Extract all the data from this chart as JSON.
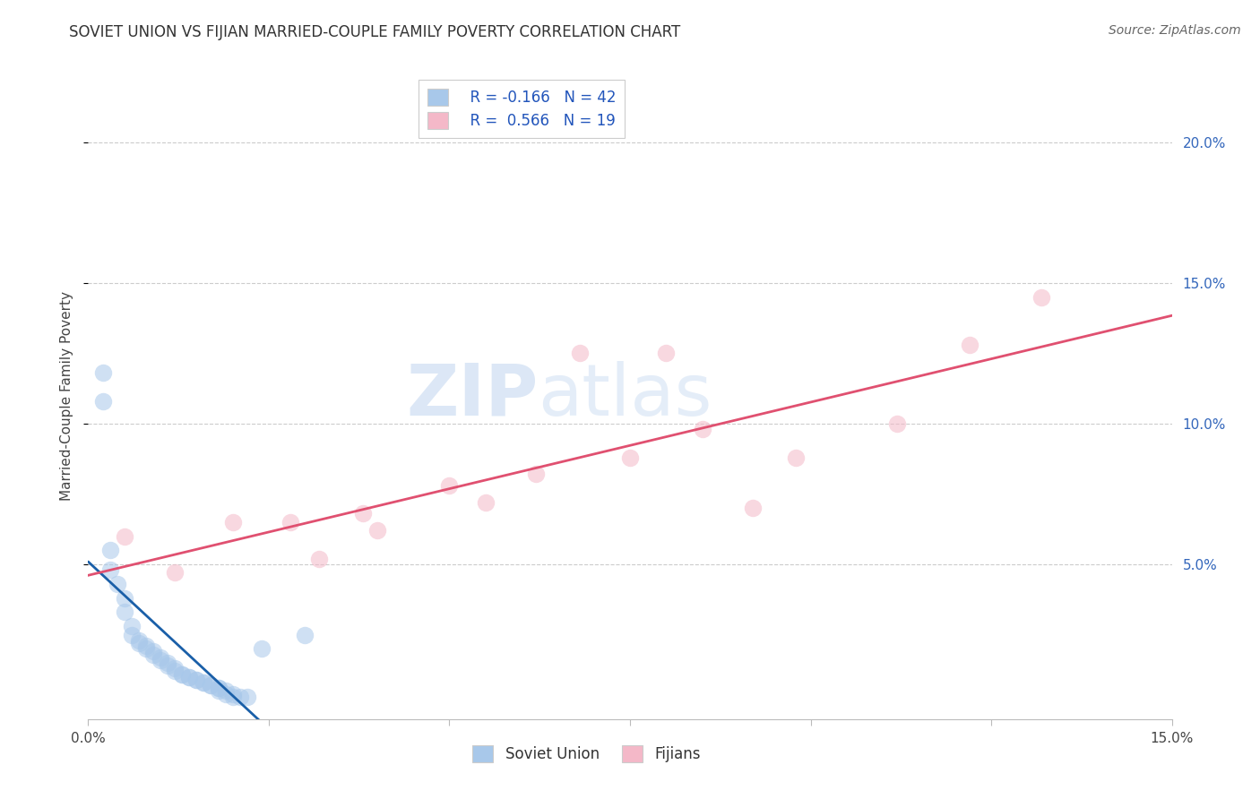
{
  "title": "SOVIET UNION VS FIJIAN MARRIED-COUPLE FAMILY POVERTY CORRELATION CHART",
  "source": "Source: ZipAtlas.com",
  "ylabel": "Married-Couple Family Poverty",
  "xlim": [
    0,
    0.15
  ],
  "ylim": [
    -0.005,
    0.225
  ],
  "soviet_x": [
    0.002,
    0.002,
    0.003,
    0.003,
    0.004,
    0.005,
    0.005,
    0.006,
    0.006,
    0.007,
    0.007,
    0.008,
    0.008,
    0.009,
    0.009,
    0.01,
    0.01,
    0.011,
    0.011,
    0.012,
    0.012,
    0.013,
    0.013,
    0.014,
    0.014,
    0.015,
    0.015,
    0.016,
    0.016,
    0.017,
    0.017,
    0.018,
    0.018,
    0.018,
    0.019,
    0.019,
    0.02,
    0.02,
    0.021,
    0.022,
    0.024,
    0.03
  ],
  "soviet_y": [
    0.118,
    0.108,
    0.055,
    0.048,
    0.043,
    0.038,
    0.033,
    0.028,
    0.025,
    0.023,
    0.022,
    0.021,
    0.02,
    0.019,
    0.018,
    0.017,
    0.016,
    0.015,
    0.014,
    0.013,
    0.012,
    0.011,
    0.011,
    0.01,
    0.01,
    0.009,
    0.009,
    0.008,
    0.008,
    0.007,
    0.007,
    0.006,
    0.006,
    0.005,
    0.005,
    0.004,
    0.004,
    0.003,
    0.003,
    0.003,
    0.02,
    0.025
  ],
  "fijian_x": [
    0.005,
    0.012,
    0.02,
    0.028,
    0.032,
    0.038,
    0.04,
    0.05,
    0.055,
    0.062,
    0.068,
    0.075,
    0.08,
    0.085,
    0.092,
    0.098,
    0.112,
    0.122,
    0.132
  ],
  "fijian_y": [
    0.06,
    0.047,
    0.065,
    0.065,
    0.052,
    0.068,
    0.062,
    0.078,
    0.072,
    0.082,
    0.125,
    0.088,
    0.125,
    0.098,
    0.07,
    0.088,
    0.1,
    0.128,
    0.145
  ],
  "soviet_color": "#a8c8ea",
  "fijian_color": "#f4b8c8",
  "soviet_line_color": "#1a5fa8",
  "fijian_line_color": "#e05070",
  "legend_soviet_R": "R = -0.166",
  "legend_soviet_N": "N = 42",
  "legend_fijian_R": "R =  0.566",
  "legend_fijian_N": "N = 19",
  "watermark_zip": "ZIP",
  "watermark_atlas": "atlas",
  "background_color": "#ffffff",
  "grid_color": "#cccccc",
  "marker_size": 14,
  "marker_alpha": 0.55,
  "title_fontsize": 12,
  "source_fontsize": 10
}
